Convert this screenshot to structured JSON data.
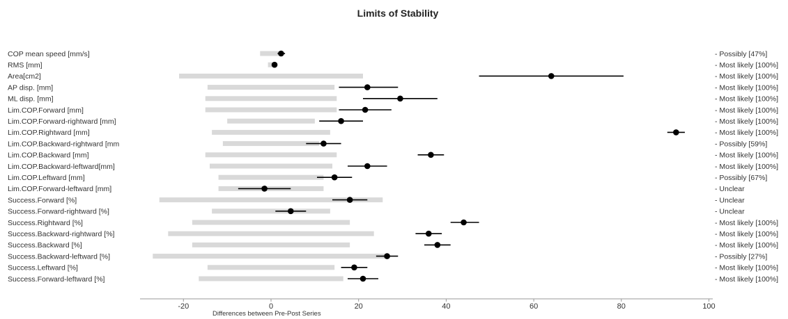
{
  "chart_data": {
    "type": "forest",
    "title": "Limits of Stability",
    "xlabel": "Differences between Pre-Post Series",
    "xlim": [
      -30,
      100
    ],
    "xticks": [
      -20,
      0,
      20,
      40,
      60,
      80,
      100
    ],
    "colors": {
      "band": "#d9d9d9",
      "point": "#000000",
      "ci": "#000000",
      "axis": "#999999",
      "text": "#333333"
    },
    "rows": [
      {
        "label": "COP mean speed [mm/s]",
        "mean": 2.3,
        "ci": [
          1.5,
          3.2
        ],
        "swc": [
          -2.5,
          2.5
        ],
        "inference": "Possibly [47%]"
      },
      {
        "label": "RMS [mm]",
        "mean": 0.8,
        "ci": [
          0.5,
          1.1
        ],
        "swc": [
          -0.7,
          0.7
        ],
        "inference": "Most likely [100%]"
      },
      {
        "label": "Area[cm2]",
        "mean": 64,
        "ci": [
          47.5,
          80.5
        ],
        "swc": [
          -21,
          21
        ],
        "inference": "Most likely [100%]"
      },
      {
        "label": "AP disp. [mm]",
        "mean": 22,
        "ci": [
          15.5,
          29
        ],
        "swc": [
          -14.5,
          14.5
        ],
        "inference": "Most likely [100%]"
      },
      {
        "label": "ML disp. [mm]",
        "mean": 29.5,
        "ci": [
          21,
          38
        ],
        "swc": [
          -15,
          15
        ],
        "inference": "Most likely [100%]"
      },
      {
        "label": "Lim.COP.Forward [mm]",
        "mean": 21.5,
        "ci": [
          15.5,
          27.5
        ],
        "swc": [
          -15,
          15
        ],
        "inference": "Most likely [100%]"
      },
      {
        "label": "Lim.COP.Forward-rightward [mm]",
        "mean": 16,
        "ci": [
          11,
          21
        ],
        "swc": [
          -10,
          10
        ],
        "inference": "Most likely [100%]"
      },
      {
        "label": "Lim.COP.Rightward [mm]",
        "mean": 92.5,
        "ci": [
          90.5,
          94.5
        ],
        "swc": [
          -13.5,
          13.5
        ],
        "inference": "Most likely [100%]"
      },
      {
        "label": "Lim.COP.Backward-rightward [mm",
        "mean": 12,
        "ci": [
          8,
          16
        ],
        "swc": [
          -11,
          11
        ],
        "inference": "Possibly [59%]"
      },
      {
        "label": "Lim.COP.Backward [mm]",
        "mean": 36.5,
        "ci": [
          33.5,
          39.5
        ],
        "swc": [
          -15,
          15
        ],
        "inference": "Most likely [100%]"
      },
      {
        "label": "Lim.COP.Backward-leftward[mm]",
        "mean": 22,
        "ci": [
          17.5,
          26.5
        ],
        "swc": [
          -14,
          14
        ],
        "inference": "Most likely [100%]"
      },
      {
        "label": "Lim.COP.Leftward [mm]",
        "mean": 14.5,
        "ci": [
          10.5,
          18.5
        ],
        "swc": [
          -12,
          12
        ],
        "inference": "Possibly [67%]"
      },
      {
        "label": "Lim.COP.Forward-leftward [mm]",
        "mean": -1.5,
        "ci": [
          -7.5,
          4.5
        ],
        "swc": [
          -12,
          12
        ],
        "inference": "Unclear"
      },
      {
        "label": "Success.Forward [%]",
        "mean": 18,
        "ci": [
          14,
          22
        ],
        "swc": [
          -25.5,
          25.5
        ],
        "inference": "Unclear"
      },
      {
        "label": "Success.Forward-rightward [%]",
        "mean": 4.5,
        "ci": [
          1,
          8
        ],
        "swc": [
          -13.5,
          13.5
        ],
        "inference": "Unclear"
      },
      {
        "label": "Success.Rightward [%]",
        "mean": 44,
        "ci": [
          41,
          47.5
        ],
        "swc": [
          -18,
          18
        ],
        "inference": "Most likely [100%]"
      },
      {
        "label": "Success.Backward-rightward [%]",
        "mean": 36,
        "ci": [
          33,
          39
        ],
        "swc": [
          -23.5,
          23.5
        ],
        "inference": "Most likely [100%]"
      },
      {
        "label": "Success.Backward [%]",
        "mean": 38,
        "ci": [
          35,
          41
        ],
        "swc": [
          -18,
          18
        ],
        "inference": "Most likely [100%]"
      },
      {
        "label": "Success.Backward-leftward [%]",
        "mean": 26.5,
        "ci": [
          24,
          29
        ],
        "swc": [
          -27,
          27
        ],
        "inference": "Possibly [27%]"
      },
      {
        "label": "Success.Leftward [%]",
        "mean": 19,
        "ci": [
          16,
          22
        ],
        "swc": [
          -14.5,
          14.5
        ],
        "inference": "Most likely [100%]"
      },
      {
        "label": "Success.Forward-leftward [%]",
        "mean": 21,
        "ci": [
          17.5,
          24.5
        ],
        "swc": [
          -16.5,
          16.5
        ],
        "inference": "Most likely [100%]"
      }
    ]
  }
}
